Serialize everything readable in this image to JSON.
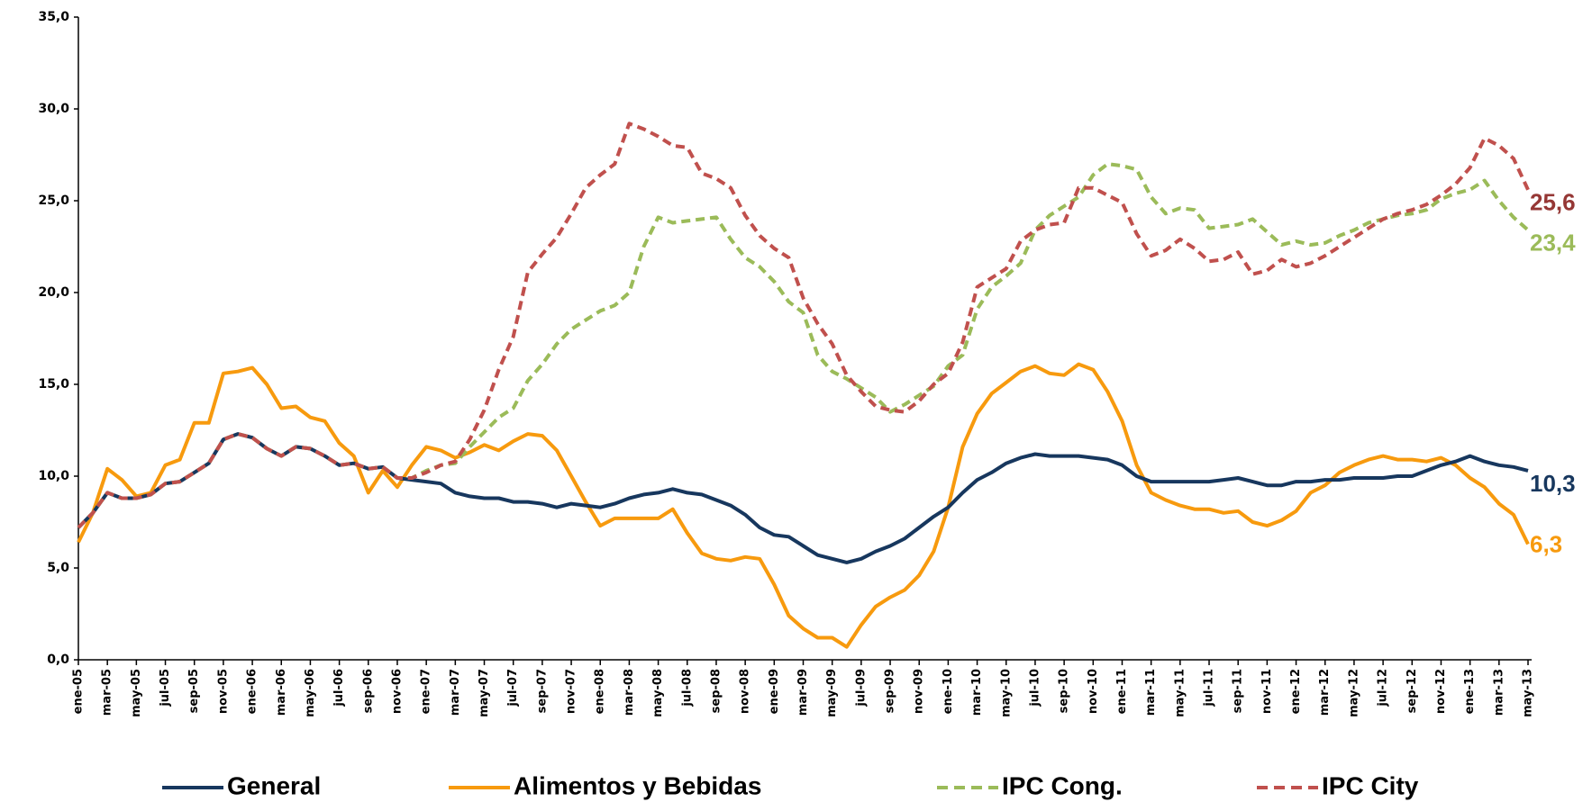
{
  "chart_data": {
    "type": "line",
    "categories": [
      "ene-05",
      null,
      "mar-05",
      null,
      "may-05",
      null,
      "jul-05",
      null,
      "sep-05",
      null,
      "nov-05",
      null,
      "ene-06",
      null,
      "mar-06",
      null,
      "may-06",
      null,
      "jul-06",
      null,
      "sep-06",
      null,
      "nov-06",
      null,
      "ene-07",
      null,
      "mar-07",
      null,
      "may-07",
      null,
      "jul-07",
      null,
      "sep-07",
      null,
      "nov-07",
      null,
      "ene-08",
      null,
      "mar-08",
      null,
      "may-08",
      null,
      "jul-08",
      null,
      "sep-08",
      null,
      "nov-08",
      null,
      "ene-09",
      null,
      "mar-09",
      null,
      "may-09",
      null,
      "jul-09",
      null,
      "sep-09",
      null,
      "nov-09",
      null,
      "ene-10",
      null,
      "mar-10",
      null,
      "may-10",
      null,
      "jul-10",
      null,
      "sep-10",
      null,
      "nov-10",
      null,
      "ene-11",
      null,
      "mar-11",
      null,
      "may-11",
      null,
      "jul-11",
      null,
      "sep-11",
      null,
      "nov-11",
      null,
      "ene-12",
      null,
      "mar-12",
      null,
      "may-12",
      null,
      "jul-12",
      null,
      "sep-12",
      null,
      "nov-12",
      null,
      "ene-13",
      null,
      "mar-13",
      null,
      "may-13"
    ],
    "ylim": [
      0,
      35
    ],
    "yticks": [
      {
        "value": 0,
        "label": "0,0"
      },
      {
        "value": 5,
        "label": "5,0"
      },
      {
        "value": 10,
        "label": "10,0"
      },
      {
        "value": 15,
        "label": "15,0"
      },
      {
        "value": 20,
        "label": "20,0"
      },
      {
        "value": 25,
        "label": "25,0"
      },
      {
        "value": 30,
        "label": "30,0"
      },
      {
        "value": 35,
        "label": "35,0"
      }
    ],
    "grid": false,
    "legend": "bottom",
    "series": [
      {
        "name": "General",
        "color": "#17375e",
        "label_color": "#17375e",
        "dashed": false,
        "values": [
          7.2,
          8.0,
          9.1,
          8.8,
          8.8,
          9.0,
          9.6,
          9.7,
          10.2,
          10.7,
          12.0,
          12.3,
          12.1,
          11.5,
          11.1,
          11.6,
          11.5,
          11.1,
          10.6,
          10.7,
          10.4,
          10.5,
          9.9,
          9.8,
          9.7,
          9.6,
          9.1,
          8.9,
          8.8,
          8.8,
          8.6,
          8.6,
          8.5,
          8.3,
          8.5,
          8.4,
          8.3,
          8.5,
          8.8,
          9.0,
          9.1,
          9.3,
          9.1,
          9.0,
          8.7,
          8.4,
          7.9,
          7.2,
          6.8,
          6.7,
          6.2,
          5.7,
          5.5,
          5.3,
          5.5,
          5.9,
          6.2,
          6.6,
          7.2,
          7.8,
          8.3,
          9.1,
          9.8,
          10.2,
          10.7,
          11.0,
          11.2,
          11.1,
          11.1,
          11.1,
          11.0,
          10.9,
          10.6,
          10.0,
          9.7,
          9.7,
          9.7,
          9.7,
          9.7,
          9.8,
          9.9,
          9.7,
          9.5,
          9.5,
          9.7,
          9.7,
          9.8,
          9.8,
          9.9,
          9.9,
          9.9,
          10.0,
          10.0,
          10.3,
          10.6,
          10.8,
          11.1,
          10.8,
          10.6,
          10.5,
          10.3
        ],
        "value_labels": [
          null,
          null,
          null,
          null,
          null,
          null,
          null,
          null,
          null,
          null,
          null,
          null,
          null,
          null,
          null,
          null,
          null,
          null,
          null,
          null,
          null,
          null,
          null,
          null,
          null,
          null,
          null,
          null,
          null,
          null,
          null,
          null,
          null,
          null,
          null,
          null,
          null,
          null,
          null,
          null,
          null,
          null,
          null,
          null,
          null,
          null,
          null,
          null,
          null,
          null,
          null,
          null,
          null,
          null,
          null,
          null,
          null,
          null,
          null,
          null,
          null,
          null,
          null,
          null,
          null,
          null,
          null,
          null,
          null,
          null,
          null,
          null,
          null,
          null,
          null,
          null,
          null,
          null,
          null,
          null,
          null,
          null,
          null,
          null,
          null,
          null,
          null,
          null,
          null,
          null,
          null,
          null,
          null,
          null,
          null,
          null,
          null,
          null,
          null,
          null,
          "10,3"
        ]
      },
      {
        "name": "Alimentos y Bebidas",
        "color": "#f79a0e",
        "label_color": "#f79a0e",
        "dashed": false,
        "values": [
          6.4,
          8.0,
          10.4,
          9.8,
          8.9,
          9.1,
          10.6,
          10.9,
          12.9,
          12.9,
          15.6,
          15.7,
          15.9,
          15.0,
          13.7,
          13.8,
          13.2,
          13.0,
          11.8,
          11.1,
          9.1,
          10.3,
          9.4,
          10.6,
          11.6,
          11.4,
          11.0,
          11.3,
          11.7,
          11.4,
          11.9,
          12.3,
          12.2,
          11.4,
          10.0,
          8.6,
          7.3,
          7.7,
          7.7,
          7.7,
          7.7,
          8.2,
          6.9,
          5.8,
          5.5,
          5.4,
          5.6,
          5.5,
          4.1,
          2.4,
          1.7,
          1.2,
          1.2,
          0.7,
          1.9,
          2.9,
          3.4,
          3.8,
          4.6,
          5.9,
          8.3,
          11.6,
          13.4,
          14.5,
          15.1,
          15.7,
          16.0,
          15.6,
          15.5,
          16.1,
          15.8,
          14.6,
          13.0,
          10.6,
          9.1,
          8.7,
          8.4,
          8.2,
          8.2,
          8.0,
          8.1,
          7.5,
          7.3,
          7.6,
          8.1,
          9.1,
          9.5,
          10.2,
          10.6,
          10.9,
          11.1,
          10.9,
          10.9,
          10.8,
          11.0,
          10.6,
          9.9,
          9.4,
          8.5,
          7.9,
          6.3
        ],
        "value_labels": [
          null,
          null,
          null,
          null,
          null,
          null,
          null,
          null,
          null,
          null,
          null,
          null,
          null,
          null,
          null,
          null,
          null,
          null,
          null,
          null,
          null,
          null,
          null,
          null,
          null,
          null,
          null,
          null,
          null,
          null,
          null,
          null,
          null,
          null,
          null,
          null,
          null,
          null,
          null,
          null,
          null,
          null,
          null,
          null,
          null,
          null,
          null,
          null,
          null,
          null,
          null,
          null,
          null,
          null,
          null,
          null,
          null,
          null,
          null,
          null,
          null,
          null,
          null,
          null,
          null,
          null,
          null,
          null,
          null,
          null,
          null,
          null,
          null,
          null,
          null,
          null,
          null,
          null,
          null,
          null,
          null,
          null,
          null,
          null,
          null,
          null,
          null,
          null,
          null,
          null,
          null,
          null,
          null,
          null,
          null,
          null,
          null,
          null,
          null,
          null,
          "6,3"
        ]
      },
      {
        "name": "IPC Cong.",
        "color": "#9bbb59",
        "label_color": "#9bbb59",
        "dashed": true,
        "values": [
          7.2,
          8.0,
          9.1,
          8.8,
          8.8,
          9.0,
          9.6,
          9.7,
          10.2,
          10.7,
          12.0,
          12.3,
          12.1,
          11.5,
          11.1,
          11.6,
          11.5,
          11.1,
          10.6,
          10.7,
          10.4,
          10.5,
          9.9,
          9.9,
          10.3,
          10.6,
          10.7,
          11.6,
          12.4,
          13.2,
          13.7,
          15.2,
          16.1,
          17.2,
          18.0,
          18.5,
          19.0,
          19.3,
          20.0,
          22.5,
          24.1,
          23.8,
          23.9,
          24.0,
          24.1,
          22.9,
          21.9,
          21.4,
          20.6,
          19.5,
          18.9,
          16.6,
          15.7,
          15.3,
          14.8,
          14.3,
          13.5,
          13.9,
          14.4,
          14.9,
          16.0,
          16.6,
          19.1,
          20.3,
          20.9,
          21.6,
          23.4,
          24.2,
          24.7,
          25.2,
          26.4,
          27.0,
          26.9,
          26.7,
          25.2,
          24.3,
          24.6,
          24.5,
          23.5,
          23.6,
          23.7,
          24.0,
          23.3,
          22.6,
          22.8,
          22.6,
          22.7,
          23.1,
          23.4,
          23.8,
          24.0,
          24.2,
          24.3,
          24.5,
          25.1,
          25.4,
          25.6,
          26.1,
          25.0,
          24.1,
          23.4
        ],
        "value_labels": [
          null,
          null,
          null,
          null,
          null,
          null,
          null,
          null,
          null,
          null,
          null,
          null,
          null,
          null,
          null,
          null,
          null,
          null,
          null,
          null,
          null,
          null,
          null,
          null,
          null,
          null,
          null,
          null,
          null,
          null,
          null,
          null,
          null,
          null,
          null,
          null,
          null,
          null,
          null,
          null,
          null,
          null,
          null,
          null,
          null,
          null,
          null,
          null,
          null,
          null,
          null,
          null,
          null,
          null,
          null,
          null,
          null,
          null,
          null,
          null,
          null,
          null,
          null,
          null,
          null,
          null,
          null,
          null,
          null,
          null,
          null,
          null,
          null,
          null,
          null,
          null,
          null,
          null,
          null,
          null,
          null,
          null,
          null,
          null,
          null,
          null,
          null,
          null,
          null,
          null,
          null,
          null,
          null,
          null,
          null,
          null,
          null,
          null,
          null,
          null,
          "23,4"
        ]
      },
      {
        "name": "IPC City",
        "color": "#c0504d",
        "label_color": "#953735",
        "dashed": true,
        "values": [
          7.2,
          8.0,
          9.1,
          8.8,
          8.8,
          9.0,
          9.6,
          9.7,
          10.2,
          10.7,
          12.0,
          12.3,
          12.1,
          11.5,
          11.1,
          11.6,
          11.5,
          11.1,
          10.6,
          10.7,
          10.4,
          10.5,
          9.9,
          9.9,
          10.2,
          10.6,
          10.8,
          12.0,
          13.6,
          15.8,
          17.6,
          21.1,
          22.1,
          23.0,
          24.3,
          25.7,
          26.4,
          27.0,
          29.2,
          28.9,
          28.5,
          28.0,
          27.9,
          26.5,
          26.2,
          25.7,
          24.2,
          23.1,
          22.4,
          21.9,
          19.7,
          18.3,
          17.2,
          15.5,
          14.6,
          13.8,
          13.6,
          13.5,
          14.1,
          15.0,
          15.6,
          17.3,
          20.3,
          20.8,
          21.3,
          22.8,
          23.4,
          23.7,
          23.8,
          25.7,
          25.7,
          25.3,
          24.9,
          23.2,
          22.0,
          22.3,
          22.9,
          22.4,
          21.7,
          21.8,
          22.2,
          21.0,
          21.2,
          21.8,
          21.4,
          21.6,
          22.0,
          22.5,
          23.0,
          23.5,
          24.0,
          24.3,
          24.5,
          24.8,
          25.3,
          25.9,
          26.8,
          28.4,
          28.0,
          27.3,
          25.6
        ],
        "value_labels": [
          null,
          null,
          null,
          null,
          null,
          null,
          null,
          null,
          null,
          null,
          null,
          null,
          null,
          null,
          null,
          null,
          null,
          null,
          null,
          null,
          null,
          null,
          null,
          null,
          null,
          null,
          null,
          null,
          null,
          null,
          null,
          null,
          null,
          null,
          null,
          null,
          null,
          null,
          null,
          null,
          null,
          null,
          null,
          null,
          null,
          null,
          null,
          null,
          null,
          null,
          null,
          null,
          null,
          null,
          null,
          null,
          null,
          null,
          null,
          null,
          null,
          null,
          null,
          null,
          null,
          null,
          null,
          null,
          null,
          null,
          null,
          null,
          null,
          null,
          null,
          null,
          null,
          null,
          null,
          null,
          null,
          null,
          null,
          null,
          null,
          null,
          null,
          null,
          null,
          null,
          null,
          null,
          null,
          null,
          null,
          null,
          null,
          null,
          null,
          null,
          "25,6"
        ]
      }
    ]
  }
}
